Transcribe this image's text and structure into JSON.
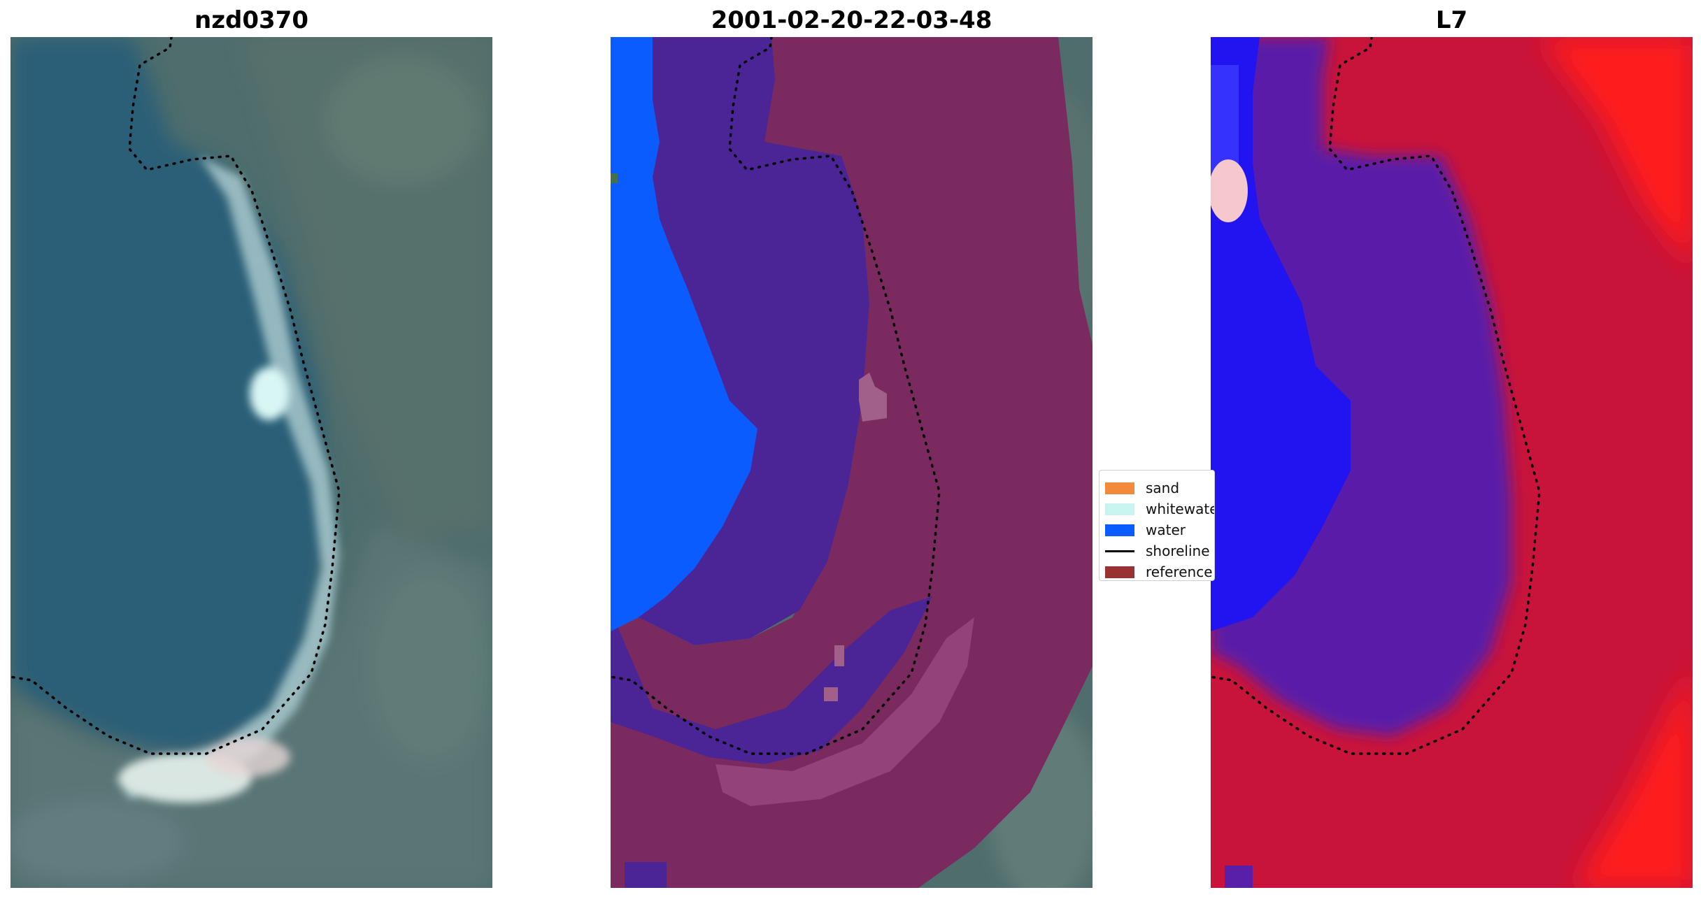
{
  "panels": [
    {
      "title": "nzd0370"
    },
    {
      "title": "2001-02-20-22-03-48"
    },
    {
      "title": "L7"
    }
  ],
  "legend": {
    "items": [
      {
        "label": "sand",
        "color": "#f28a3c",
        "kind": "patch"
      },
      {
        "label": "whitewater",
        "color": "#c8f5f0",
        "kind": "patch"
      },
      {
        "label": "water",
        "color": "#0a5cff",
        "kind": "patch"
      },
      {
        "label": "shoreline",
        "color": "#000000",
        "kind": "line"
      },
      {
        "label": "reference",
        "color": "#993333",
        "kind": "patch"
      }
    ]
  },
  "colors": {
    "satellite_water": "#2e5f78",
    "satellite_land": "#4e6e6e",
    "classified_water": "#0a5cff",
    "classified_other": "#4b2496",
    "reference_overlay": "#7a2a5f",
    "index_water": "#0000ff",
    "index_mid": "#5a1fa8",
    "index_land": "#c8143a",
    "index_high": "#ff1a1a",
    "shoreline": "#000000"
  }
}
